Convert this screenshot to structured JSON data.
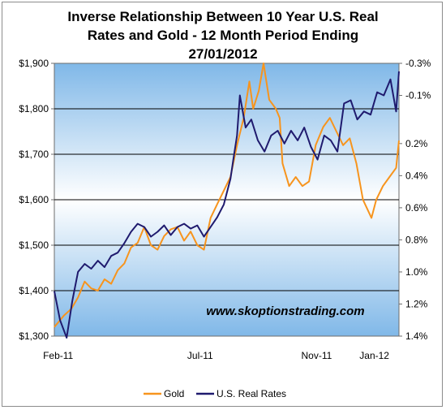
{
  "chart_data": {
    "type": "line",
    "title": "Inverse Relationship Between 10 Year U.S. Real\nRates and Gold - 12 Month Period Ending\n27/01/2012",
    "x_tick_labels": [
      "Feb-11",
      "Jul-11",
      "Nov-11",
      "Jan-12"
    ],
    "x_tick_dates": [
      "2011-02-01",
      "2011-07-01",
      "2011-11-01",
      "2012-01-01"
    ],
    "x_range": [
      "2011-01-28",
      "2012-01-27"
    ],
    "y_left": {
      "range": [
        1300,
        1900
      ],
      "ticks": [
        1300,
        1400,
        1500,
        1600,
        1700,
        1800,
        1900
      ],
      "tick_labels": [
        "$1,300",
        "$1,400",
        "$1,500",
        "$1,600",
        "$1,700",
        "$1,800",
        "$1,900"
      ]
    },
    "y_right": {
      "range": [
        1.4,
        -0.3
      ],
      "ticks": [
        -0.3,
        -0.1,
        0.2,
        0.4,
        0.6,
        0.8,
        1.0,
        1.2,
        1.4
      ],
      "tick_labels": [
        "-0.3%",
        "-0.1%",
        "0.2%",
        "0.4%",
        "0.6%",
        "0.8%",
        "1.0%",
        "1.2%",
        "1.4%"
      ],
      "inverted": true
    },
    "grid": true,
    "legend_position": "bottom",
    "annotation": "www.skoptionstrading.com",
    "series": [
      {
        "name": "Gold",
        "axis": "left",
        "color": "#f7941d",
        "x": [
          "2011-01-28",
          "2011-02-07",
          "2011-02-15",
          "2011-02-22",
          "2011-03-01",
          "2011-03-08",
          "2011-03-15",
          "2011-03-22",
          "2011-03-29",
          "2011-04-05",
          "2011-04-12",
          "2011-04-19",
          "2011-04-26",
          "2011-05-03",
          "2011-05-10",
          "2011-05-17",
          "2011-05-24",
          "2011-05-31",
          "2011-06-07",
          "2011-06-14",
          "2011-06-21",
          "2011-06-28",
          "2011-07-05",
          "2011-07-12",
          "2011-07-19",
          "2011-07-26",
          "2011-08-02",
          "2011-08-09",
          "2011-08-16",
          "2011-08-22",
          "2011-08-26",
          "2011-09-01",
          "2011-09-06",
          "2011-09-12",
          "2011-09-19",
          "2011-09-23",
          "2011-09-26",
          "2011-10-03",
          "2011-10-10",
          "2011-10-17",
          "2011-10-24",
          "2011-10-31",
          "2011-11-08",
          "2011-11-15",
          "2011-11-22",
          "2011-11-29",
          "2011-12-06",
          "2011-12-13",
          "2011-12-20",
          "2011-12-29",
          "2012-01-03",
          "2012-01-10",
          "2012-01-17",
          "2012-01-24",
          "2012-01-27"
        ],
        "values": [
          1320,
          1345,
          1360,
          1385,
          1420,
          1405,
          1400,
          1425,
          1415,
          1445,
          1460,
          1495,
          1505,
          1540,
          1500,
          1490,
          1520,
          1535,
          1540,
          1510,
          1530,
          1500,
          1490,
          1560,
          1590,
          1620,
          1650,
          1720,
          1780,
          1860,
          1800,
          1840,
          1900,
          1820,
          1800,
          1780,
          1680,
          1630,
          1650,
          1630,
          1640,
          1720,
          1760,
          1780,
          1750,
          1720,
          1735,
          1680,
          1600,
          1560,
          1600,
          1630,
          1650,
          1670,
          1730
        ]
      },
      {
        "name": "U.S. Real Rates",
        "axis": "right",
        "color": "#1f1a6e",
        "x": [
          "2011-01-28",
          "2011-02-03",
          "2011-02-10",
          "2011-02-16",
          "2011-02-22",
          "2011-03-01",
          "2011-03-08",
          "2011-03-15",
          "2011-03-22",
          "2011-03-29",
          "2011-04-05",
          "2011-04-12",
          "2011-04-19",
          "2011-04-26",
          "2011-05-03",
          "2011-05-10",
          "2011-05-17",
          "2011-05-24",
          "2011-05-31",
          "2011-06-07",
          "2011-06-14",
          "2011-06-21",
          "2011-06-28",
          "2011-07-05",
          "2011-07-12",
          "2011-07-19",
          "2011-07-26",
          "2011-08-02",
          "2011-08-05",
          "2011-08-09",
          "2011-08-12",
          "2011-08-18",
          "2011-08-24",
          "2011-08-31",
          "2011-09-07",
          "2011-09-14",
          "2011-09-21",
          "2011-09-28",
          "2011-10-05",
          "2011-10-12",
          "2011-10-19",
          "2011-10-26",
          "2011-11-02",
          "2011-11-09",
          "2011-11-16",
          "2011-11-23",
          "2011-11-30",
          "2011-12-07",
          "2011-12-14",
          "2011-12-21",
          "2011-12-28",
          "2012-01-04",
          "2012-01-11",
          "2012-01-18",
          "2012-01-24",
          "2012-01-27"
        ],
        "values": [
          1.12,
          1.3,
          1.41,
          1.18,
          1.0,
          0.95,
          0.98,
          0.93,
          0.97,
          0.9,
          0.88,
          0.82,
          0.75,
          0.7,
          0.72,
          0.78,
          0.75,
          0.71,
          0.77,
          0.72,
          0.7,
          0.73,
          0.71,
          0.78,
          0.72,
          0.66,
          0.58,
          0.42,
          0.3,
          0.15,
          -0.1,
          0.1,
          0.05,
          0.18,
          0.25,
          0.15,
          0.12,
          0.2,
          0.12,
          0.18,
          0.1,
          0.22,
          0.3,
          0.15,
          0.18,
          0.25,
          -0.05,
          -0.07,
          0.05,
          0.0,
          0.02,
          -0.12,
          -0.1,
          -0.2,
          0.0,
          -0.25
        ]
      }
    ]
  }
}
